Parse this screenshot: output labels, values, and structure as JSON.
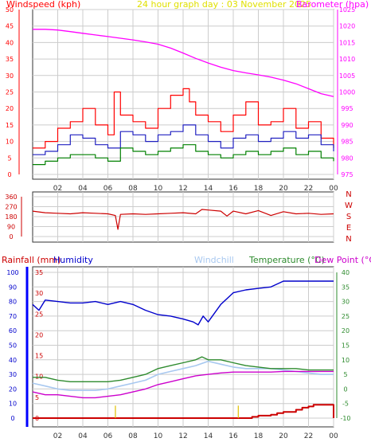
{
  "colors": {
    "windspeed": "#ff0000",
    "wind_avg": "#2020c0",
    "wind_low": "#008000",
    "barometer": "#ff00ff",
    "direction": "#cc0000",
    "title": "#e0e000",
    "rainfall": "#cc0000",
    "humidity": "#0000cc",
    "windchill": "#a8c8f0",
    "temperature": "#2e8b2e",
    "dewpoint": "#cc00cc",
    "rain_markers": "#e0c000",
    "grid": "#cccccc",
    "axis_blue": "#0000ff"
  },
  "chart_data": [
    {
      "type": "line",
      "title": "24 hour graph day : 03 November 2025",
      "legend_left": "Windspeed (kph)",
      "legend_right": "Barometer (hpa)",
      "x_ticks": [
        "02",
        "04",
        "06",
        "08",
        "10",
        "12",
        "14",
        "16",
        "18",
        "20",
        "22",
        "00"
      ],
      "y_left_ticks": [
        0,
        5,
        10,
        15,
        20,
        25,
        30,
        35,
        40,
        45,
        50
      ],
      "y_right_ticks": [
        975,
        980,
        985,
        990,
        995,
        1000,
        1005,
        1010,
        1015,
        1020,
        1025
      ],
      "ylim_left": [
        0,
        50
      ],
      "ylim_right": [
        975,
        1025
      ],
      "xlim": [
        0,
        24
      ],
      "series": [
        {
          "name": "Barometer (hpa)",
          "axis": "right",
          "x": [
            0,
            1,
            2,
            3,
            4,
            5,
            6,
            7,
            8,
            9,
            10,
            11,
            12,
            13,
            14,
            15,
            16,
            17,
            18,
            19,
            20,
            21,
            22,
            23,
            24
          ],
          "y": [
            1019,
            1019,
            1018.8,
            1018.3,
            1017.8,
            1017.3,
            1016.8,
            1016.3,
            1015.8,
            1015.2,
            1014.5,
            1013.3,
            1011.8,
            1010.2,
            1008.8,
            1007.5,
            1006.5,
            1005.8,
            1005.2,
            1004.5,
            1003.6,
            1002.5,
            1001,
            999.5,
            998.6
          ]
        },
        {
          "name": "Windspeed (kph)",
          "axis": "left",
          "x": [
            0,
            1,
            2,
            3,
            4,
            5,
            6,
            6.5,
            7,
            8,
            9,
            10,
            11,
            12,
            12.5,
            13,
            14,
            15,
            16,
            17,
            18,
            19,
            20,
            21,
            22,
            23,
            24
          ],
          "y": [
            8,
            10,
            14,
            16,
            20,
            15,
            12,
            25,
            18,
            16,
            14,
            20,
            24,
            26,
            22,
            18,
            16,
            13,
            18,
            22,
            15,
            16,
            20,
            14,
            16,
            11,
            8
          ]
        },
        {
          "name": "Average windspeed",
          "axis": "left",
          "x": [
            0,
            1,
            2,
            3,
            4,
            5,
            6,
            7,
            8,
            9,
            10,
            11,
            12,
            13,
            14,
            15,
            16,
            17,
            18,
            19,
            20,
            21,
            22,
            23,
            24
          ],
          "y": [
            6,
            7,
            9,
            12,
            11,
            9,
            8,
            13,
            12,
            10,
            12,
            13,
            15,
            12,
            10,
            8,
            11,
            12,
            10,
            11,
            13,
            11,
            12,
            9,
            7
          ]
        },
        {
          "name": "Lowest windspeed",
          "axis": "left",
          "x": [
            0,
            1,
            2,
            3,
            4,
            5,
            6,
            7,
            8,
            9,
            10,
            11,
            12,
            13,
            14,
            15,
            16,
            17,
            18,
            19,
            20,
            21,
            22,
            23,
            24
          ],
          "y": [
            3,
            4,
            5,
            6,
            6,
            5,
            4,
            8,
            7,
            6,
            7,
            8,
            9,
            7,
            6,
            5,
            6,
            7,
            6,
            7,
            8,
            6,
            7,
            5,
            4
          ]
        }
      ]
    },
    {
      "type": "line",
      "y_ticks": [
        0,
        90,
        180,
        270,
        360
      ],
      "direction_labels": [
        "N",
        "W",
        "S",
        "E",
        "N"
      ],
      "ylim": [
        0,
        360
      ],
      "xlim": [
        0,
        24
      ],
      "series": [
        {
          "name": "Wind direction",
          "x": [
            0,
            1,
            2,
            3,
            4,
            5,
            6,
            6.6,
            6.8,
            7,
            8,
            9,
            10,
            11,
            12,
            13,
            13.5,
            14,
            15,
            15.5,
            16,
            17,
            18,
            19,
            20,
            21,
            22,
            23,
            24
          ],
          "y": [
            230,
            215,
            210,
            205,
            215,
            210,
            205,
            190,
            65,
            200,
            205,
            200,
            205,
            210,
            215,
            205,
            245,
            240,
            230,
            185,
            230,
            205,
            235,
            190,
            225,
            205,
            210,
            200,
            205
          ]
        }
      ]
    },
    {
      "type": "line",
      "legend": [
        "Rainfall (mm)",
        "Humidity",
        "Windchill",
        "Temperature (°C)",
        "Dew Point (°C)"
      ],
      "x_ticks": [
        "02",
        "04",
        "06",
        "08",
        "10",
        "12",
        "14",
        "16",
        "18",
        "20",
        "22",
        "00"
      ],
      "y_left_ticks": [
        0,
        10,
        20,
        30,
        40,
        50,
        60,
        70,
        80,
        90,
        100
      ],
      "y_rain_ticks": [
        0,
        5,
        10,
        15,
        20,
        25,
        30,
        35
      ],
      "y_right_ticks": [
        -10,
        -5,
        0,
        5,
        10,
        15,
        20,
        25,
        30,
        35,
        40
      ],
      "ylim_left": [
        0,
        100
      ],
      "ylim_rain": [
        0,
        35
      ],
      "ylim_right": [
        -10,
        40
      ],
      "xlim": [
        0,
        24
      ],
      "series": [
        {
          "name": "Humidity",
          "axis": "left",
          "x": [
            0,
            0.5,
            1,
            2,
            3,
            4,
            5,
            6,
            7,
            8,
            9,
            10,
            11,
            12,
            12.8,
            13.2,
            13.6,
            14,
            15,
            16,
            17,
            18,
            19,
            20,
            21,
            22,
            23,
            24
          ],
          "y": [
            78,
            74,
            81,
            80,
            79,
            79,
            80,
            78,
            80,
            78,
            74,
            71,
            70,
            68,
            66,
            64,
            70,
            66,
            78,
            86,
            88,
            89,
            90,
            94,
            94,
            94,
            94,
            94
          ]
        },
        {
          "name": "Windchill",
          "axis": "right",
          "x": [
            0,
            1,
            2,
            3,
            4,
            5,
            6,
            7,
            8,
            9,
            10,
            11,
            12,
            13,
            14,
            15,
            16,
            17,
            18,
            19,
            20,
            21,
            22,
            23,
            24
          ],
          "y": [
            2,
            1,
            0,
            -0.5,
            -0.5,
            -0.5,
            0,
            1,
            2,
            3,
            5,
            6,
            7,
            8,
            9.5,
            8.5,
            7.5,
            7,
            7,
            7,
            6.5,
            6,
            5.5,
            5,
            5
          ]
        },
        {
          "name": "Temperature (°C)",
          "axis": "right",
          "x": [
            0,
            1,
            2,
            3,
            4,
            5,
            6,
            7,
            8,
            9,
            10,
            11,
            12,
            13,
            13.5,
            14,
            15,
            16,
            17,
            18,
            19,
            20,
            21,
            22,
            23,
            24
          ],
          "y": [
            4,
            4,
            3,
            2.5,
            2.5,
            2.5,
            2.5,
            3,
            4,
            5,
            7,
            8,
            9,
            10,
            11,
            10,
            10,
            9,
            8,
            7.5,
            7,
            7,
            7,
            6.5,
            6.5,
            6.5
          ]
        },
        {
          "name": "Dew Point (°C)",
          "axis": "right",
          "x": [
            0,
            1,
            2,
            3,
            4,
            5,
            6,
            7,
            8,
            9,
            10,
            11,
            12,
            13,
            14,
            15,
            16,
            17,
            18,
            19,
            20,
            21,
            22,
            23,
            24
          ],
          "y": [
            -1,
            -2,
            -2,
            -2.5,
            -3,
            -3,
            -2.5,
            -2,
            -1,
            0,
            1.5,
            2.5,
            3.5,
            4.5,
            5,
            5.5,
            5.8,
            5.8,
            5.8,
            5.8,
            6,
            6,
            6,
            6,
            6
          ]
        },
        {
          "name": "Rainfall (mm)",
          "axis": "rain",
          "x": [
            0,
            17,
            17.5,
            18,
            19,
            19.5,
            20,
            21,
            21.5,
            22,
            22.4,
            23.9,
            24
          ],
          "y": [
            0,
            0,
            0.3,
            0.6,
            0.8,
            1.2,
            1.5,
            2,
            2.5,
            2.8,
            3.2,
            3.2,
            0
          ]
        },
        {
          "name": "Rain rate markers",
          "axis": "rain",
          "x": [
            6.6,
            16.4
          ],
          "y": [
            3,
            3
          ]
        }
      ]
    }
  ]
}
